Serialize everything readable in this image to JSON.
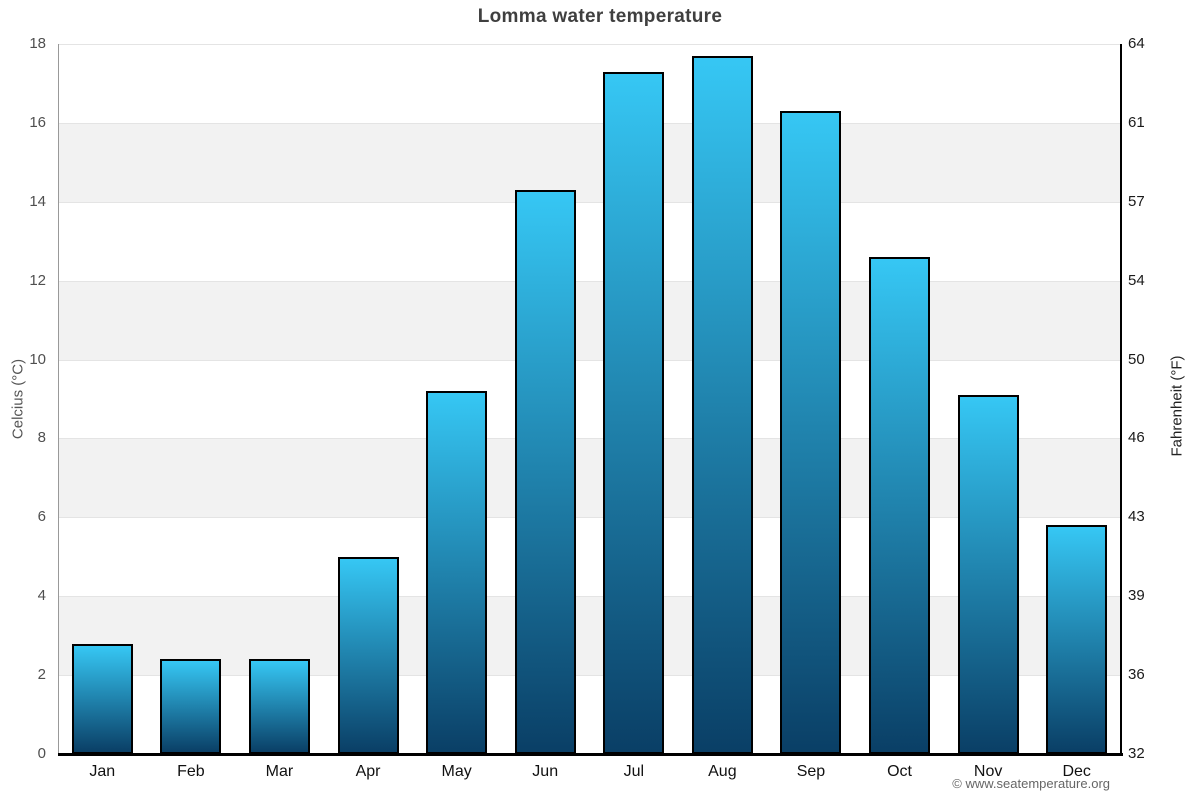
{
  "title": "Lomma water temperature",
  "footer": {
    "attribution": "© www.seatemperature.org"
  },
  "axes": {
    "left": {
      "title": "Celcius (°C)",
      "ticks": [
        18,
        16,
        14,
        12,
        10,
        8,
        6,
        4,
        2,
        0
      ]
    },
    "right": {
      "title": "Fahrenheit (°F)",
      "ticks": [
        64,
        61,
        57,
        54,
        50,
        46,
        43,
        39,
        36,
        32
      ]
    }
  },
  "chart_data": {
    "type": "bar",
    "title": "Lomma water temperature",
    "categories": [
      "Jan",
      "Feb",
      "Mar",
      "Apr",
      "May",
      "Jun",
      "Jul",
      "Aug",
      "Sep",
      "Oct",
      "Nov",
      "Dec"
    ],
    "values": [
      2.8,
      2.4,
      2.4,
      5.0,
      9.2,
      14.3,
      17.3,
      17.7,
      16.3,
      12.6,
      9.1,
      5.8
    ],
    "xlabel": "",
    "ylabel_left": "Celcius (°C)",
    "ylabel_right": "Fahrenheit (°F)",
    "ylim": [
      0,
      18
    ],
    "left_tick_values": [
      18,
      16,
      14,
      12,
      10,
      8,
      6,
      4,
      2,
      0
    ],
    "right_tick_labels": [
      64,
      61,
      57,
      54,
      50,
      46,
      43,
      39,
      36,
      32
    ],
    "gray_bands_between": [
      [
        16,
        14
      ],
      [
        12,
        10
      ],
      [
        8,
        6
      ],
      [
        4,
        2
      ]
    ],
    "legend": "none",
    "grid": "horizontal gridlines at even values with alternating gray bands",
    "colors": {
      "bar_gradient_top": "#36c7f4",
      "bar_gradient_bottom": "#0a3f66",
      "bar_border": "#000000",
      "band": "#f2f2f2",
      "gridline": "#e4e4e4",
      "title_text": "#3f3f3f",
      "left_axis_text": "#4f4f4f",
      "right_axis_text": "#1a1a1a",
      "attribution_text": "#666666"
    }
  }
}
